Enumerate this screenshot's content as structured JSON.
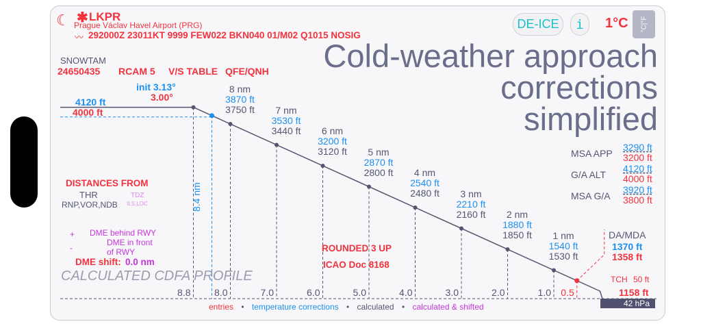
{
  "header": {
    "icon": "moon-stars-icon",
    "snow_icon": "snowflake-icon",
    "icao": "LKPR",
    "airport": "Prague Václav Havel Airport (PRG)",
    "metar_icon": "signal-icon",
    "metar": "292000Z 23011KT 9999 FEW022 BKN040 01/M02 Q1015 NOSIG",
    "deice": "DE-ICE",
    "info": "i",
    "temperature": "1°C",
    "unit_toggle": "°C|°F"
  },
  "overlay_title": [
    "Cold-weather approach corrections",
    "simplified"
  ],
  "snowtam": {
    "label": "SNOWTAM",
    "number": "24650435",
    "rcam": "RCAM 5",
    "vs_table": "V/S TABLE",
    "qfe": "QFE/QNH"
  },
  "angles": {
    "init": "init 3.13°",
    "nominal": "3.00°"
  },
  "initial_alt": {
    "corrected": "4120 ft",
    "entry": "4000 ft"
  },
  "fixes": [
    {
      "d": 8,
      "nm": "8 nm",
      "corr": "3870 ft",
      "calc": "3750 ft"
    },
    {
      "d": 7,
      "nm": "7 nm",
      "corr": "3530 ft",
      "calc": "3440 ft"
    },
    {
      "d": 6,
      "nm": "6 nm",
      "corr": "3200 ft",
      "calc": "3120 ft"
    },
    {
      "d": 5,
      "nm": "5 nm",
      "corr": "2870 ft",
      "calc": "2800 ft"
    },
    {
      "d": 4,
      "nm": "4 nm",
      "corr": "2540 ft",
      "calc": "2480 ft"
    },
    {
      "d": 3,
      "nm": "3 nm",
      "corr": "2210 ft",
      "calc": "2160 ft"
    },
    {
      "d": 2,
      "nm": "2 nm",
      "corr": "1880 ft",
      "calc": "1850 ft"
    },
    {
      "d": 1,
      "nm": "1 nm",
      "corr": "1540 ft",
      "calc": "1530 ft"
    }
  ],
  "ticks": [
    "8.8",
    "8.0",
    "7.0",
    "6.0",
    "5.0",
    "4.0",
    "3.0",
    "2.0",
    "1.0",
    "0.5"
  ],
  "tick_values": [
    8.8,
    8.0,
    7.0,
    6.0,
    5.0,
    4.0,
    3.0,
    2.0,
    1.0,
    0.5
  ],
  "fap_distance": "8.4 nm",
  "fap_d": 8.4,
  "distances": {
    "title": "DISTANCES FROM",
    "thr": "THR",
    "thr_sub": "RNP,VOR,NDB",
    "tdz": "TDZ",
    "tdz_sub": "ILS,LOC"
  },
  "dme": {
    "plus": "+",
    "behind": "DME behind RWY",
    "minus": "-",
    "front1": "DME in front",
    "front2": "of RWY",
    "shift_label": "DME shift:",
    "shift_value": "0.0 nm"
  },
  "profile_title": "CALCULATED CDFA PROFILE",
  "rounded": "ROUNDED 3 UP",
  "icao_doc": "ICAO Doc 8168",
  "msa": [
    {
      "label": "MSA APP",
      "corr": "3290 ft",
      "entry": "3200 ft"
    },
    {
      "label": "G/A ALT",
      "corr": "4120 ft",
      "entry": "4000 ft"
    },
    {
      "label": "MSA G/A",
      "corr": "3920 ft",
      "entry": "3800 ft"
    }
  ],
  "da": {
    "label": "DA/MDA",
    "corr": "1370 ft",
    "entry": "1358 ft",
    "tch": "TCH",
    "tch_value": "50 ft",
    "elev": "1158 ft",
    "qfe": "42 hPa"
  },
  "legend": {
    "entries": "entries",
    "temp": "temperature corrections",
    "calc": "calculated",
    "shifted": "calculated & shifted",
    "sep": "•"
  },
  "colors": {
    "entry": "#f0333d",
    "correction": "#1c8ff0",
    "calculated": "#545670",
    "shifted": "#c436d8",
    "accent": "#18c0c8"
  }
}
